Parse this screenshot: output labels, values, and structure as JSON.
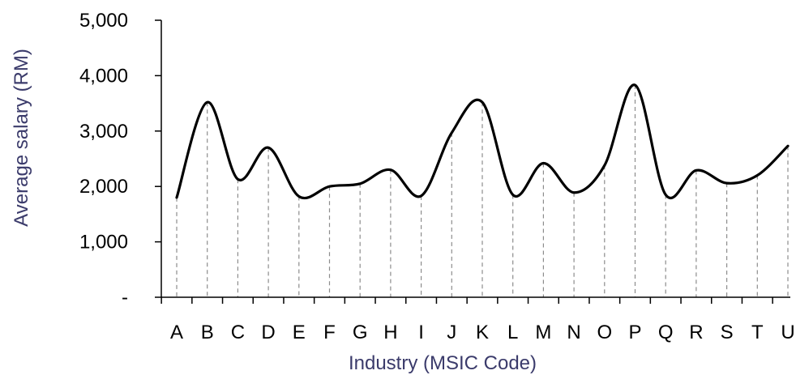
{
  "chart_data": {
    "type": "line",
    "title": "",
    "xlabel": "Industry (MSIC Code)",
    "ylabel": "Average salary (RM)",
    "categories": [
      "A",
      "B",
      "C",
      "D",
      "E",
      "F",
      "G",
      "H",
      "I",
      "J",
      "K",
      "L",
      "M",
      "N",
      "O",
      "P",
      "Q",
      "R",
      "S",
      "T",
      "U"
    ],
    "values": [
      1800,
      3520,
      2130,
      2700,
      1820,
      2000,
      2050,
      2300,
      1830,
      2970,
      3520,
      1850,
      2420,
      1890,
      2380,
      3830,
      1850,
      2290,
      2060,
      2200,
      2730
    ],
    "yticks": [
      0,
      1000,
      2000,
      3000,
      4000,
      5000
    ],
    "ytick_labels": [
      "-",
      "1,000",
      "2,000",
      "3,000",
      "4,000",
      "5,000"
    ],
    "ylim": [
      0,
      5000
    ],
    "smooth": true,
    "drop_lines": true,
    "grid": false,
    "legend": "none",
    "colors": {
      "line": "#000000",
      "drop_line": "#8c8c8c",
      "axis": "#000000",
      "axis_title": "#3b3b6b"
    }
  }
}
